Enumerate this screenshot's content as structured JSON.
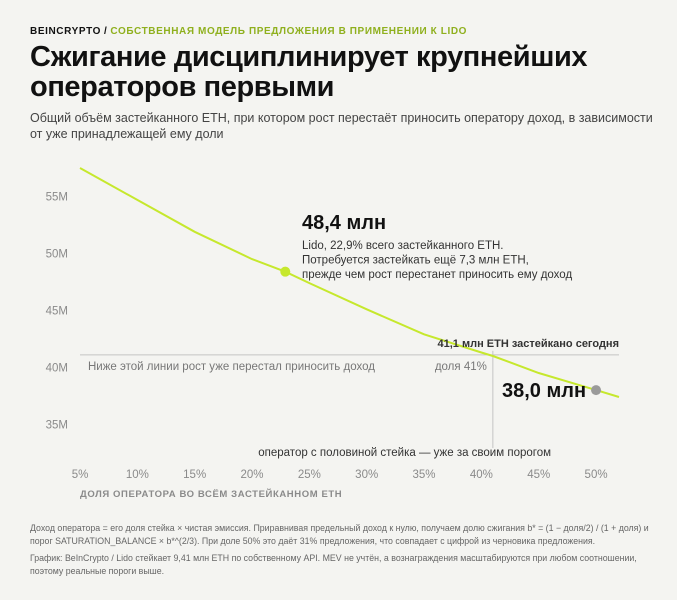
{
  "header": {
    "brand": "BEINCRYPTO",
    "separator": "/",
    "topic": "СОБСТВЕННАЯ МОДЕЛЬ ПРЕДЛОЖЕНИЯ В ПРИМЕНЕНИИ К LIDO",
    "title": "Сжигание дисциплинирует крупнейших операторов первыми",
    "subtitle": "Общий объём застейканного ETH, при котором рост перестаёт приносить оператору доход, в зависимости от уже принадлежащей ему доли"
  },
  "colors": {
    "curve": "#c6e82d",
    "lido_point": "#c6e82d",
    "half_point": "#9a9a9a",
    "accent_text": "#8fb01e"
  },
  "chart_data": {
    "type": "line",
    "xlabel": "ДОЛЯ ОПЕРАТОРА ВО ВСЁМ ЗАСТЕЙКАННОМ ETH",
    "ylabel": "",
    "xlim": [
      5,
      52
    ],
    "ylim": [
      34.5,
      57.5
    ],
    "x_ticks": [
      5,
      10,
      15,
      20,
      25,
      30,
      35,
      40,
      45,
      50
    ],
    "x_tick_labels": [
      "5%",
      "10%",
      "15%",
      "20%",
      "25%",
      "30%",
      "35%",
      "40%",
      "45%",
      "50%"
    ],
    "y_ticks": [
      35,
      40,
      45,
      50,
      55
    ],
    "y_tick_labels": [
      "35M",
      "40M",
      "45M",
      "50M",
      "55M"
    ],
    "grid": false,
    "series": [
      {
        "x": [
          5,
          10,
          15,
          20,
          22.9,
          25,
          30,
          35,
          40,
          41,
          45,
          50,
          52
        ],
        "y": [
          57.5,
          54.7,
          51.9,
          49.5,
          48.4,
          47.4,
          45.1,
          42.9,
          41.3,
          41.0,
          39.5,
          38.0,
          37.4
        ]
      }
    ],
    "points": [
      {
        "id": "lido",
        "x": 22.9,
        "y": 48.4,
        "color": "#c6e82d"
      },
      {
        "id": "half",
        "x": 50,
        "y": 38.0,
        "color": "#9a9a9a"
      }
    ],
    "reference_line": {
      "y": 41.1,
      "label": "41,1 млн ETH застейкано сегодня",
      "below_label": "Ниже этой линии рост уже перестал приносить доход"
    },
    "vertical_marker": {
      "x": 41,
      "label": "доля 41%"
    },
    "annotations": {
      "lido_value": "48,4 млн",
      "lido_lines": [
        "Lido, 22,9% всего застейканного ETH.",
        "Потребуется застейкать ещё 7,3 млн ETH,",
        "прежде чем рост перестанет приносить ему доход"
      ],
      "half_value": "38,0 млн",
      "half_note": "оператор с половиной стейка — уже за своим порогом"
    }
  },
  "footer": {
    "line1": "Доход оператора = его доля стейка × чистая эмиссия. Приравнивая предельный доход к нулю, получаем долю сжигания b* = (1 − доля/2) / (1 + доля) и порог SATURATION_BALANCE × b*^(2/3). При доле 50% это даёт 31% предложения, что совпадает с цифрой из черновика предложения.",
    "line2": "График: BeInCrypto / Lido стейкает 9,41 млн ETH по собственному API. MEV не учтён, а вознаграждения масштабируются при любом соотношении, поэтому реальные пороги выше."
  }
}
